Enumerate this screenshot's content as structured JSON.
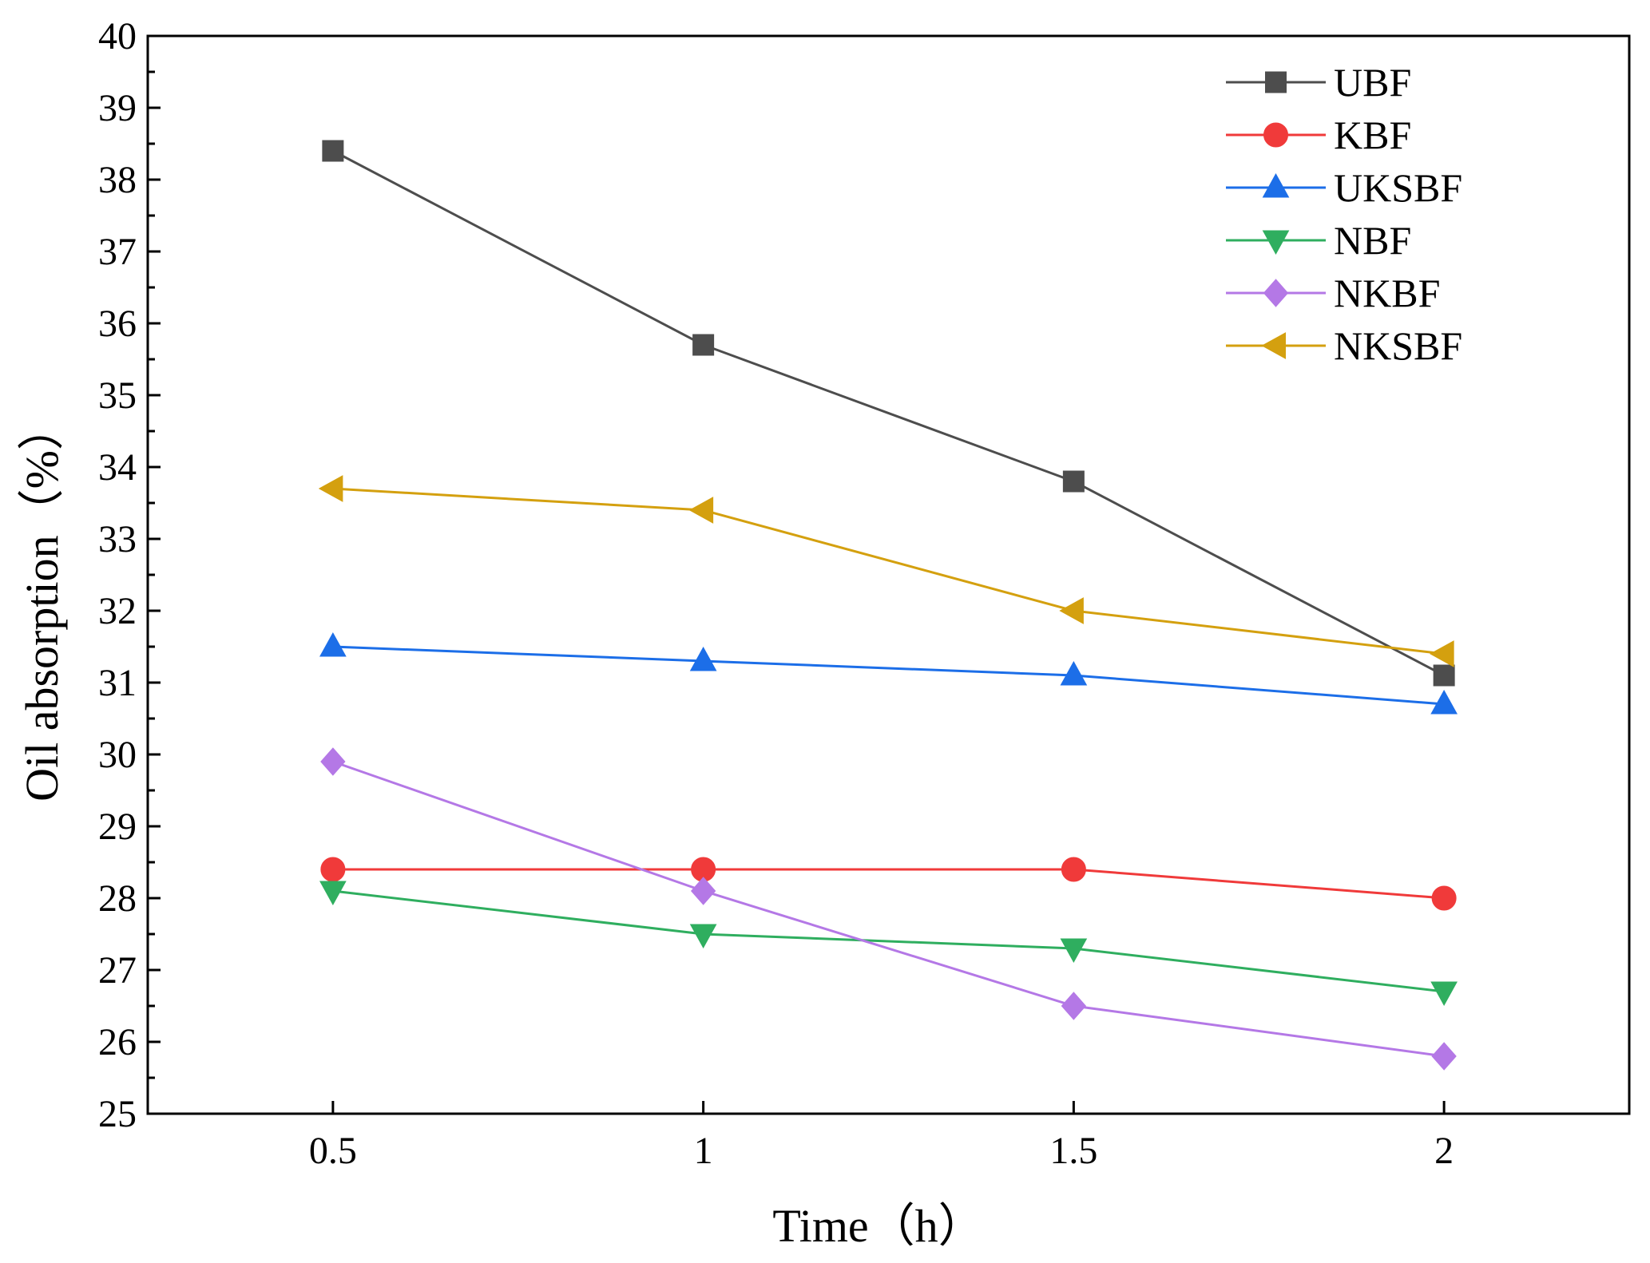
{
  "chart_data": {
    "type": "line",
    "title": "",
    "xlabel": "Time（h）",
    "ylabel": "Oil absorption（%）",
    "x": [
      0.5,
      1,
      1.5,
      2
    ],
    "x_tick_labels": [
      "0.5",
      "1",
      "1.5",
      "2"
    ],
    "xlim": [
      0.25,
      2.25
    ],
    "ylim": [
      25,
      40
    ],
    "y_ticks": [
      25,
      26,
      27,
      28,
      29,
      30,
      31,
      32,
      33,
      34,
      35,
      36,
      37,
      38,
      39,
      40
    ],
    "grid": false,
    "legend_position": "top-right",
    "series": [
      {
        "name": "UBF",
        "color": "#4d4d4d",
        "marker": "square",
        "values": [
          38.4,
          35.7,
          33.8,
          31.1
        ]
      },
      {
        "name": "KBF",
        "color": "#f03a3a",
        "marker": "circle",
        "values": [
          28.4,
          28.4,
          28.4,
          28.0
        ]
      },
      {
        "name": "UKSBF",
        "color": "#1c6ee8",
        "marker": "triangle-up",
        "values": [
          31.5,
          31.3,
          31.1,
          30.7
        ]
      },
      {
        "name": "NBF",
        "color": "#2fae5f",
        "marker": "triangle-down",
        "values": [
          28.1,
          27.5,
          27.3,
          26.7
        ]
      },
      {
        "name": "NKBF",
        "color": "#b478e6",
        "marker": "diamond",
        "values": [
          29.9,
          28.1,
          26.5,
          25.8
        ]
      },
      {
        "name": "NKSBF",
        "color": "#d4a00f",
        "marker": "triangle-left",
        "values": [
          33.7,
          33.4,
          32.0,
          31.4
        ]
      }
    ]
  }
}
